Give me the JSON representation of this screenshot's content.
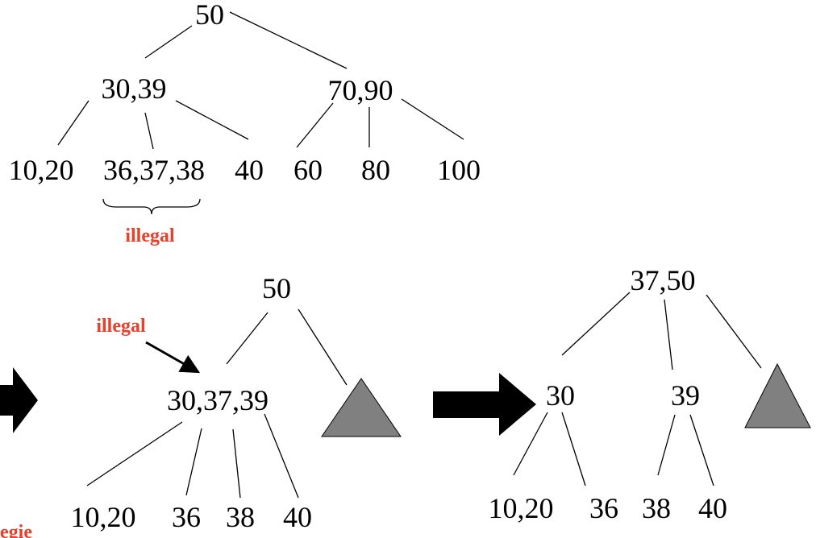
{
  "colors": {
    "annotation": "#e8402a",
    "subtree": "#808080",
    "line": "#000000"
  },
  "step1": {
    "root": "50",
    "left": "30,39",
    "right": "70,90",
    "leaves": [
      "10,20",
      "36,37,38",
      "40",
      "60",
      "80",
      "100"
    ],
    "illegal": "illegal"
  },
  "step2": {
    "root": "50",
    "middle": "30,37,39",
    "leaves": [
      "10,20",
      "36",
      "38",
      "40"
    ],
    "illegal": "illegal",
    "cut_label": "egie"
  },
  "step3": {
    "root": "37,50",
    "left": "30",
    "right": "39",
    "leaves": [
      "10,20",
      "36",
      "38",
      "40"
    ]
  }
}
